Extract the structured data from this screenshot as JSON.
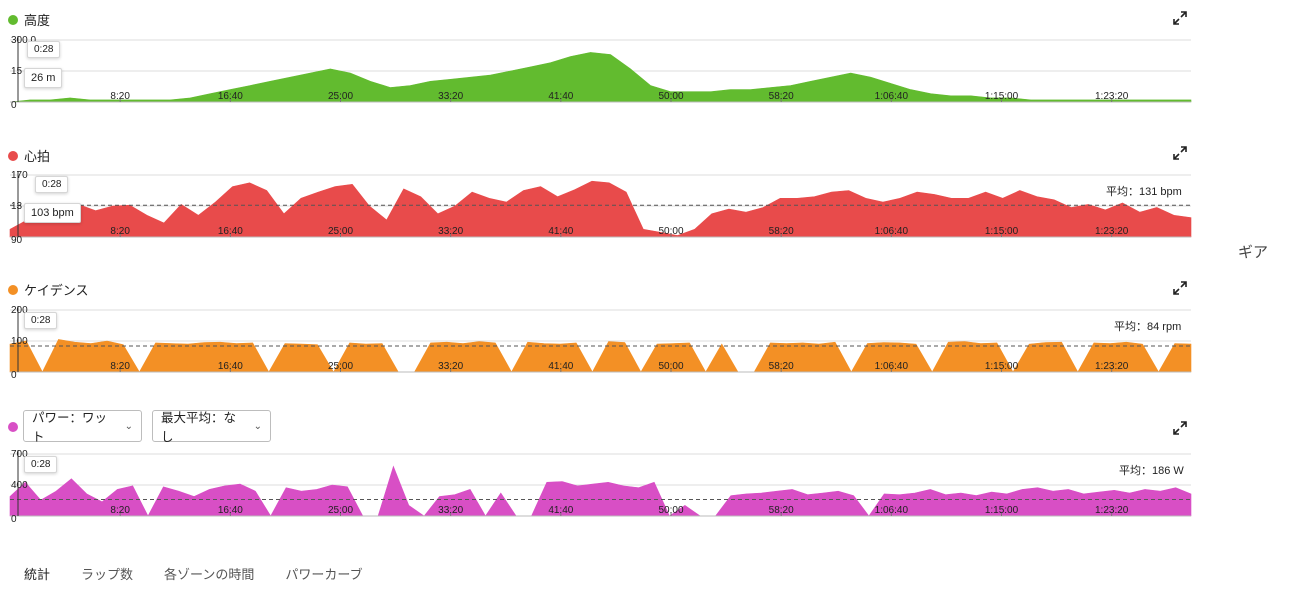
{
  "side_label": "ギア",
  "tabs": [
    "統計",
    "ラップ数",
    "各ゾーンの時間",
    "パワーカーブ"
  ],
  "power_selects": {
    "metric": "パワー：ワット",
    "max_avg": "最大平均：なし"
  },
  "cursor": {
    "time": "0:28"
  },
  "chart_data": [
    {
      "type": "area",
      "title": "高度",
      "color": "#62bb2f",
      "x_ticks": [
        "8:20",
        "16:40",
        "25:00",
        "33:20",
        "41:40",
        "50:00",
        "58:20",
        "1:06:40",
        "1:15:00",
        "1:23:20"
      ],
      "x_range_seconds": [
        0,
        5360
      ],
      "y_ticks": [
        "300.0",
        "15",
        "0"
      ],
      "ylim": [
        0,
        30
      ],
      "grid": true,
      "tooltip": {
        "time": "0:28",
        "value": "26 m"
      },
      "series": [
        {
          "values": [
            0,
            1,
            1,
            2,
            1,
            1,
            1,
            1,
            1,
            2,
            4,
            6,
            8,
            10,
            12,
            14,
            16,
            14,
            10,
            7,
            8,
            10,
            11,
            12,
            13,
            15,
            17,
            19,
            22,
            24,
            23,
            16,
            8,
            5,
            5,
            5,
            6,
            6,
            7,
            8,
            10,
            12,
            14,
            12,
            9,
            6,
            4,
            3,
            3,
            2,
            2,
            1,
            1,
            1,
            1,
            1,
            1,
            1,
            1,
            1
          ]
        }
      ]
    },
    {
      "type": "area",
      "title": "心拍",
      "color": "#e84b4b",
      "x_ticks": [
        "8:20",
        "16:40",
        "25:00",
        "33:20",
        "41:40",
        "50:00",
        "58:20",
        "1:06:40",
        "1:15:00",
        "1:23:20"
      ],
      "x_range_seconds": [
        0,
        5360
      ],
      "y_ticks": [
        "170",
        "13",
        "90"
      ],
      "ylim": [
        90,
        170
      ],
      "average": 131,
      "avg_label": "平均：131 bpm",
      "tooltip": {
        "time": "0:28",
        "value": "103 bpm"
      },
      "series": [
        {
          "values": [
            100,
            112,
            128,
            118,
            132,
            124,
            130,
            131,
            118,
            108,
            132,
            118,
            135,
            155,
            160,
            150,
            120,
            140,
            148,
            155,
            158,
            130,
            112,
            152,
            142,
            120,
            130,
            148,
            140,
            135,
            150,
            155,
            142,
            151,
            162,
            160,
            148,
            100,
            96,
            92,
            100,
            120,
            126,
            122,
            128,
            140,
            140,
            142,
            148,
            150,
            140,
            135,
            140,
            148,
            145,
            140,
            140,
            148,
            140,
            150,
            142,
            138,
            128,
            132,
            125,
            134,
            122,
            128,
            118,
            115
          ]
        }
      ]
    },
    {
      "type": "area",
      "title": "ケイデンス",
      "color": "#f39025",
      "x_ticks": [
        "8:20",
        "16:40",
        "25:00",
        "33:20",
        "41:40",
        "50:00",
        "58:20",
        "1:06:40",
        "1:15:00",
        "1:23:20"
      ],
      "x_range_seconds": [
        0,
        5360
      ],
      "y_ticks": [
        "200",
        "100",
        "0"
      ],
      "ylim": [
        0,
        200
      ],
      "average": 84,
      "avg_label": "平均：84 rpm",
      "tooltip": {
        "time": "0:28"
      },
      "series": [
        {
          "values": [
            90,
            100,
            0,
            105,
            96,
            92,
            100,
            88,
            0,
            94,
            92,
            90,
            95,
            96,
            92,
            94,
            0,
            92,
            90,
            88,
            0,
            94,
            90,
            92,
            0,
            0,
            94,
            96,
            92,
            98,
            94,
            0,
            96,
            92,
            90,
            94,
            0,
            98,
            95,
            0,
            90,
            92,
            94,
            0,
            90,
            0,
            0,
            94,
            92,
            94,
            90,
            96,
            0,
            92,
            95,
            94,
            90,
            0,
            96,
            98,
            92,
            94,
            0,
            90,
            95,
            96,
            0,
            94,
            92,
            96,
            90,
            0,
            92,
            90
          ]
        }
      ]
    },
    {
      "type": "area",
      "title": "パワー：ワット",
      "color": "#d84fc5",
      "x_ticks": [
        "8:20",
        "16:40",
        "25:00",
        "33:20",
        "41:40",
        "50:00",
        "58:20",
        "1:06:40",
        "1:15:00",
        "1:23:20"
      ],
      "x_range_seconds": [
        0,
        5360
      ],
      "y_ticks": [
        "700",
        "400",
        "0"
      ],
      "ylim": [
        0,
        700
      ],
      "average": 186,
      "avg_label": "平均：186 W",
      "tooltip": {
        "time": "0:28"
      },
      "series": [
        {
          "values": [
            220,
            380,
            180,
            280,
            420,
            250,
            160,
            300,
            340,
            0,
            330,
            280,
            220,
            300,
            340,
            360,
            280,
            0,
            320,
            280,
            300,
            350,
            330,
            0,
            0,
            560,
            120,
            0,
            220,
            240,
            300,
            0,
            260,
            0,
            0,
            380,
            390,
            340,
            360,
            380,
            340,
            320,
            380,
            0,
            120,
            0,
            0,
            230,
            250,
            260,
            280,
            300,
            240,
            260,
            280,
            230,
            0,
            250,
            240,
            260,
            300,
            240,
            260,
            230,
            270,
            250,
            300,
            320,
            280,
            300,
            250,
            270,
            290,
            260,
            300,
            280,
            320,
            250
          ]
        }
      ]
    }
  ]
}
